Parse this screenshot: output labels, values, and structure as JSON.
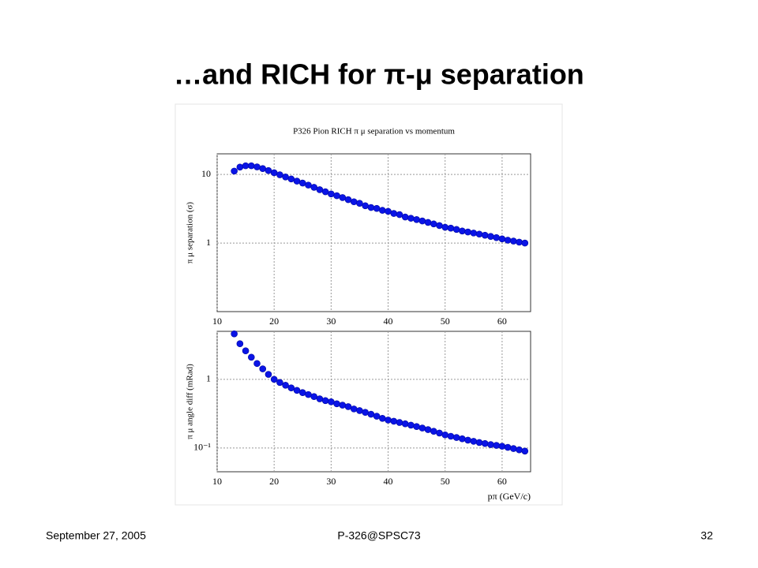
{
  "slide": {
    "title": "…and RICH for π-μ separation",
    "footer_left": "September 27, 2005",
    "footer_center": "P-326@SPSC73",
    "footer_right": "32"
  },
  "chart_data": [
    {
      "type": "scatter",
      "title": "P326 Pion RICH π μ separation vs momentum",
      "ylabel": "π μ separation (σ)",
      "xlabel": "pπ (GeV/c)",
      "x": [
        13,
        14,
        15,
        16,
        17,
        18,
        19,
        20,
        21,
        22,
        23,
        24,
        25,
        26,
        27,
        28,
        29,
        30,
        31,
        32,
        33,
        34,
        35,
        36,
        37,
        38,
        39,
        40,
        41,
        42,
        43,
        44,
        45,
        46,
        47,
        48,
        49,
        50,
        51,
        52,
        53,
        54,
        55,
        56,
        57,
        58,
        59,
        60,
        61,
        62,
        63,
        64
      ],
      "values": [
        11.2,
        12.8,
        13.4,
        13.4,
        12.9,
        12.2,
        11.4,
        10.6,
        9.9,
        9.2,
        8.6,
        8.0,
        7.5,
        7.0,
        6.5,
        6.0,
        5.6,
        5.2,
        4.9,
        4.6,
        4.3,
        4.0,
        3.8,
        3.5,
        3.3,
        3.2,
        3.0,
        2.9,
        2.7,
        2.6,
        2.4,
        2.3,
        2.2,
        2.1,
        2.0,
        1.9,
        1.8,
        1.7,
        1.65,
        1.58,
        1.5,
        1.45,
        1.4,
        1.35,
        1.3,
        1.25,
        1.2,
        1.15,
        1.1,
        1.07,
        1.03,
        1.0
      ],
      "color": "#0a14e6",
      "xlim": [
        10,
        65
      ],
      "ylim": [
        0.1,
        20
      ],
      "xticks": [
        10,
        20,
        30,
        40,
        50,
        60
      ],
      "yticks": [
        1,
        10
      ],
      "log_y": true,
      "grid": true
    },
    {
      "type": "scatter",
      "ylabel": "π μ angle diff (mRad)",
      "xlabel": "pπ (GeV/c)",
      "x": [
        13,
        14,
        15,
        16,
        17,
        18,
        19,
        20,
        21,
        22,
        23,
        24,
        25,
        26,
        27,
        28,
        29,
        30,
        31,
        32,
        33,
        34,
        35,
        36,
        37,
        38,
        39,
        40,
        41,
        42,
        43,
        44,
        45,
        46,
        47,
        48,
        49,
        50,
        51,
        52,
        53,
        54,
        55,
        56,
        57,
        58,
        59,
        60,
        61,
        62,
        63,
        64
      ],
      "values": [
        4.6,
        3.3,
        2.6,
        2.1,
        1.7,
        1.42,
        1.18,
        1.0,
        0.9,
        0.82,
        0.75,
        0.69,
        0.64,
        0.6,
        0.56,
        0.52,
        0.49,
        0.47,
        0.44,
        0.42,
        0.4,
        0.37,
        0.35,
        0.33,
        0.31,
        0.29,
        0.27,
        0.255,
        0.245,
        0.235,
        0.225,
        0.215,
        0.205,
        0.195,
        0.185,
        0.175,
        0.165,
        0.155,
        0.148,
        0.142,
        0.136,
        0.13,
        0.125,
        0.12,
        0.116,
        0.112,
        0.109,
        0.106,
        0.102,
        0.098,
        0.094,
        0.09
      ],
      "color": "#0a14e6",
      "xlim": [
        10,
        65
      ],
      "ylim": [
        0.045,
        5
      ],
      "xticks": [
        10,
        20,
        30,
        40,
        50,
        60
      ],
      "yticks": [
        {
          "value": 0.1,
          "label": "10⁻¹"
        },
        1
      ],
      "log_y": true,
      "grid": true
    }
  ]
}
